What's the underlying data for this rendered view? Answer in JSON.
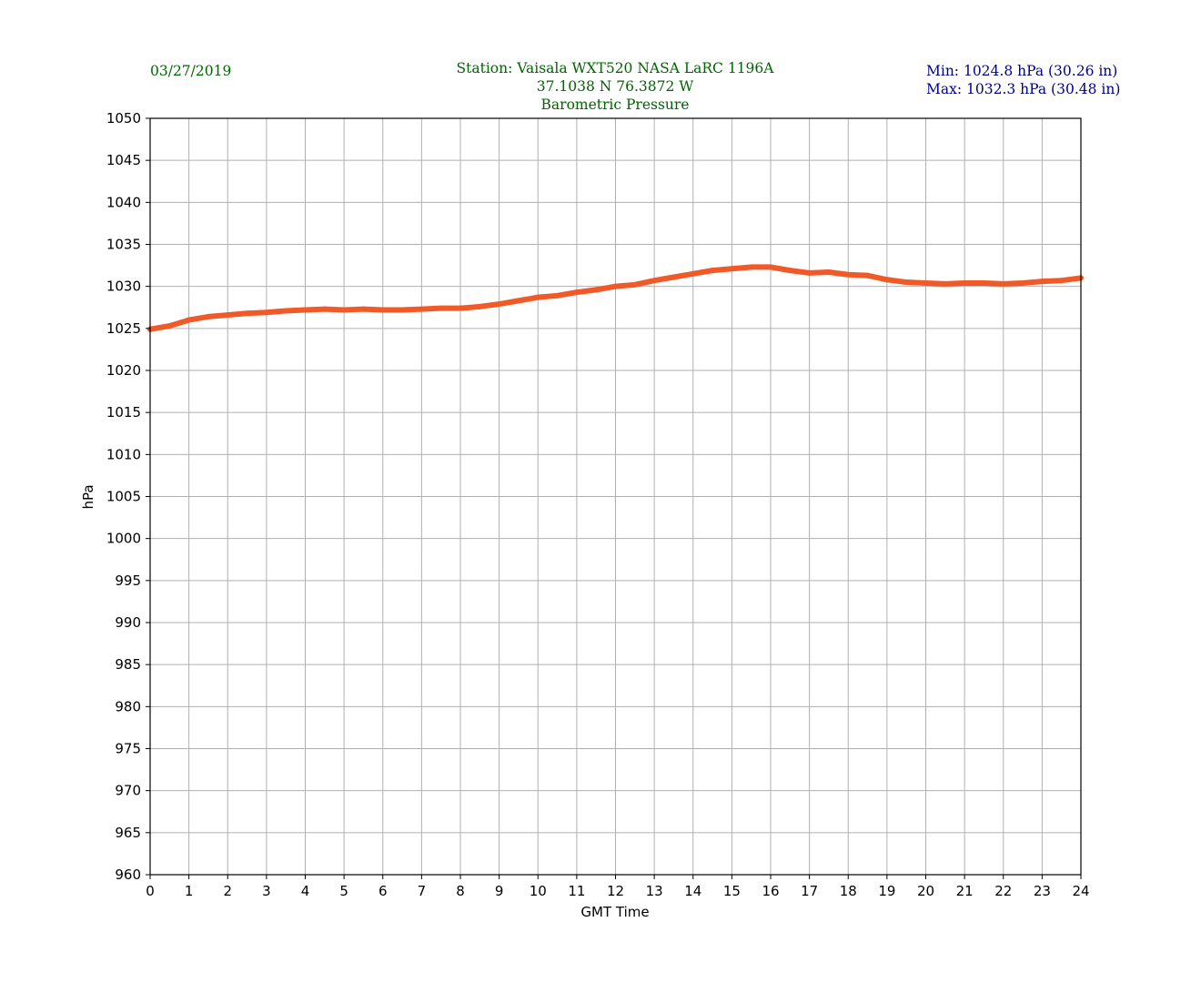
{
  "header": {
    "date": "03/27/2019",
    "station": "Station:  Vaisala WXT520  NASA LaRC 1196A",
    "coords": "37.1038 N 76.3872 W",
    "title": "Barometric Pressure",
    "min": "Min: 1024.8 hPa (30.26 in)",
    "max": "Max: 1032.3 hPa (30.48 in)"
  },
  "colors": {
    "title": "#006400",
    "minmax": "#00008b",
    "series": "#f05a28",
    "grid": "#b0b0b0"
  },
  "chart_data": {
    "type": "line",
    "title": "Barometric Pressure",
    "xlabel": "GMT Time",
    "ylabel": "hPa",
    "xlim": [
      0,
      24
    ],
    "ylim": [
      960,
      1050
    ],
    "xticks": [
      0,
      1,
      2,
      3,
      4,
      5,
      6,
      7,
      8,
      9,
      10,
      11,
      12,
      13,
      14,
      15,
      16,
      17,
      18,
      19,
      20,
      21,
      22,
      23,
      24
    ],
    "yticks": [
      960,
      965,
      970,
      975,
      980,
      985,
      990,
      995,
      1000,
      1005,
      1010,
      1015,
      1020,
      1025,
      1030,
      1035,
      1040,
      1045,
      1050
    ],
    "grid": true,
    "series": [
      {
        "name": "Pressure",
        "x": [
          0,
          0.5,
          1,
          1.5,
          2,
          2.5,
          3,
          3.5,
          4,
          4.5,
          5,
          5.5,
          6,
          6.5,
          7,
          7.5,
          8,
          8.5,
          9,
          9.5,
          10,
          10.5,
          11,
          11.5,
          12,
          12.5,
          13,
          13.5,
          14,
          14.5,
          15,
          15.5,
          16,
          16.5,
          17,
          17.5,
          18,
          18.5,
          19,
          19.5,
          20,
          20.5,
          21,
          21.5,
          22,
          22.5,
          23,
          23.5,
          24
        ],
        "values": [
          1024.9,
          1025.3,
          1026.0,
          1026.4,
          1026.6,
          1026.8,
          1026.9,
          1027.1,
          1027.2,
          1027.3,
          1027.2,
          1027.3,
          1027.2,
          1027.2,
          1027.3,
          1027.4,
          1027.4,
          1027.6,
          1027.9,
          1028.3,
          1028.7,
          1028.9,
          1029.3,
          1029.6,
          1030.0,
          1030.2,
          1030.7,
          1031.1,
          1031.5,
          1031.9,
          1032.1,
          1032.3,
          1032.3,
          1031.9,
          1031.6,
          1031.7,
          1031.4,
          1031.3,
          1030.8,
          1030.5,
          1030.4,
          1030.3,
          1030.4,
          1030.4,
          1030.3,
          1030.4,
          1030.6,
          1030.7,
          1031.0
        ]
      }
    ]
  }
}
